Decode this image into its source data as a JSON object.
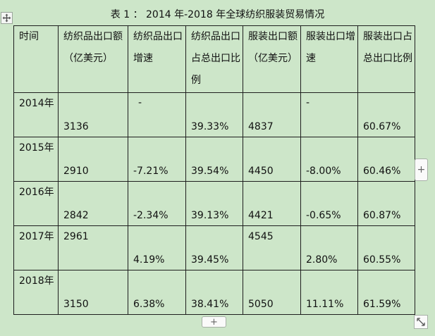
{
  "title": "表 1 ： 2014 年-2018 年全球纺织服装贸易情况",
  "icons": {
    "move": "move-arrows-icon",
    "add_column": "plus-icon",
    "add_row": "plus-icon",
    "resize": "diagonal-resize-icon"
  },
  "buttons": {
    "add_column_label": "+",
    "add_row_label": "+"
  },
  "headers": [
    "时间",
    "纺织品出口额（亿美元）",
    "纺织品出口增速",
    "纺织品出口占总出口比例",
    "服装出口额（亿美元）",
    "服装出口增速",
    "服装出口占总出口比例"
  ],
  "rows": [
    {
      "year": "2014年",
      "textile_export": "3136",
      "textile_growth": "-",
      "textile_share": "39.33%",
      "apparel_export": "4837",
      "apparel_growth": "-",
      "apparel_share": "60.67%"
    },
    {
      "year": "2015年",
      "textile_export": "2910",
      "textile_growth": "-7.21%",
      "textile_share": "39.54%",
      "apparel_export": "4450",
      "apparel_growth": "-8.00%",
      "apparel_share": "60.46%"
    },
    {
      "year": "2016年",
      "textile_export": "2842",
      "textile_growth": "-2.34%",
      "textile_share": "39.13%",
      "apparel_export": "4421",
      "apparel_growth": "-0.65%",
      "apparel_share": "60.87%"
    },
    {
      "year": "2017年",
      "textile_export": "2961",
      "textile_growth": "4.19%",
      "textile_share": "39.45%",
      "apparel_export": "4545",
      "apparel_growth": "2.80%",
      "apparel_share": "60.55%"
    },
    {
      "year": "2018年",
      "textile_export": "3150",
      "textile_growth": "6.38%",
      "textile_share": "38.41%",
      "apparel_export": "5050",
      "apparel_growth": "11.11%",
      "apparel_share": "61.59%"
    }
  ]
}
